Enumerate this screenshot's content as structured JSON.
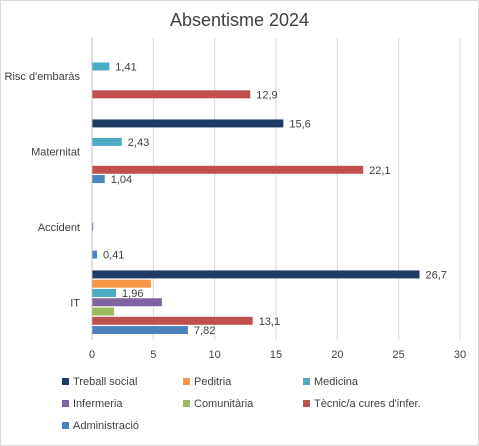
{
  "chart_data": {
    "type": "bar",
    "orientation": "horizontal",
    "title": "Absentisme 2024",
    "categories": [
      "IT",
      "Accident",
      "Maternitat",
      "Risc d'embaràs"
    ],
    "xlim": [
      0,
      30
    ],
    "xticks": [
      "0",
      "5",
      "10",
      "15",
      "20",
      "25",
      "30"
    ],
    "grid": "vertical",
    "legend_position": "bottom",
    "series": [
      {
        "name": "Treball social",
        "color": "#1f3b63",
        "values": [
          26.7,
          null,
          15.6,
          null
        ],
        "labels": [
          "26,7",
          "",
          "15,6",
          ""
        ]
      },
      {
        "name": "Peditria",
        "color": "#f79646",
        "values": [
          4.8,
          null,
          null,
          null
        ],
        "labels": [
          "",
          "",
          "",
          ""
        ]
      },
      {
        "name": "Medicina",
        "color": "#4bacc6",
        "values": [
          1.96,
          null,
          2.43,
          1.41
        ],
        "labels": [
          "1,96",
          "",
          "2,43",
          "1,41"
        ]
      },
      {
        "name": "Infermeria",
        "color": "#8064a2",
        "values": [
          5.7,
          0.1,
          null,
          null
        ],
        "labels": [
          "",
          "",
          "",
          ""
        ]
      },
      {
        "name": "Comunitària",
        "color": "#9bbb59",
        "values": [
          1.8,
          null,
          null,
          null
        ],
        "labels": [
          "",
          "",
          "",
          ""
        ]
      },
      {
        "name": "Tècnic/a cures d'infer.",
        "color": "#c0504d",
        "values": [
          13.1,
          null,
          22.1,
          12.9
        ],
        "labels": [
          "13,1",
          "",
          "22,1",
          "12,9"
        ]
      },
      {
        "name": "Administració",
        "color": "#4f81bd",
        "values": [
          7.82,
          0.41,
          1.04,
          null
        ],
        "labels": [
          "7,82",
          "0,41",
          "1,04",
          ""
        ]
      }
    ]
  }
}
